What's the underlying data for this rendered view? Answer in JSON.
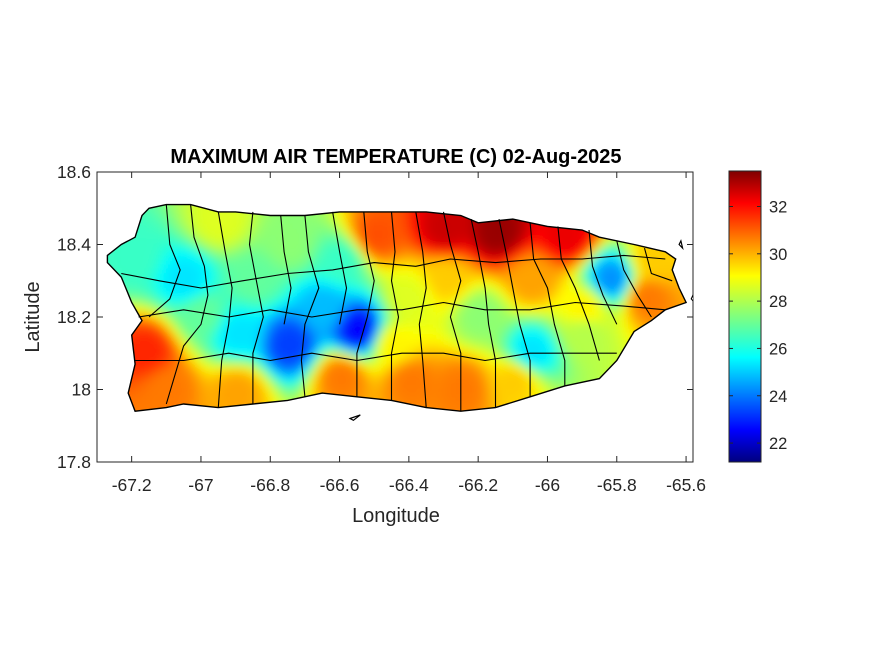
{
  "figure": {
    "title": "MAXIMUM AIR TEMPERATURE (C) 02-Aug-2025",
    "xlabel": "Longitude",
    "ylabel": "Latitude"
  },
  "map": {
    "xlim": [
      -67.3,
      -65.58
    ],
    "ylim": [
      17.8,
      18.6
    ],
    "x_ticks": [
      -67.2,
      -67,
      -66.8,
      -66.6,
      -66.4,
      -66.2,
      -66,
      -65.8,
      -65.6
    ],
    "x_tick_labels": [
      "-67.2",
      "-67",
      "-66.8",
      "-66.6",
      "-66.4",
      "-66.2",
      "-66",
      "-65.8",
      "-65.6"
    ],
    "y_ticks": [
      17.8,
      18,
      18.2,
      18.4,
      18.6
    ],
    "y_tick_labels": [
      "17.8",
      "18",
      "18.2",
      "18.4",
      "18.6"
    ],
    "boundary_color": "#000000",
    "colormap": "jet"
  },
  "colorbar": {
    "clim": [
      21.2,
      33.5
    ],
    "ticks": [
      22,
      24,
      26,
      28,
      30,
      32
    ],
    "tick_labels": [
      "22",
      "24",
      "26",
      "28",
      "30",
      "32"
    ]
  },
  "island_outline_lonlat": [
    [
      -67.27,
      18.37
    ],
    [
      -67.23,
      18.4
    ],
    [
      -67.19,
      18.42
    ],
    [
      -67.17,
      18.48
    ],
    [
      -67.15,
      18.5
    ],
    [
      -67.1,
      18.51
    ],
    [
      -67.03,
      18.51
    ],
    [
      -66.95,
      18.49
    ],
    [
      -66.9,
      18.49
    ],
    [
      -66.8,
      18.48
    ],
    [
      -66.7,
      18.48
    ],
    [
      -66.6,
      18.49
    ],
    [
      -66.45,
      18.49
    ],
    [
      -66.35,
      18.49
    ],
    [
      -66.25,
      18.48
    ],
    [
      -66.2,
      18.46
    ],
    [
      -66.1,
      18.47
    ],
    [
      -66.0,
      18.45
    ],
    [
      -65.9,
      18.44
    ],
    [
      -65.85,
      18.42
    ],
    [
      -65.75,
      18.4
    ],
    [
      -65.66,
      18.38
    ],
    [
      -65.63,
      18.36
    ],
    [
      -65.64,
      18.33
    ],
    [
      -65.62,
      18.28
    ],
    [
      -65.6,
      18.24
    ],
    [
      -65.66,
      18.22
    ],
    [
      -65.7,
      18.19
    ],
    [
      -65.75,
      18.16
    ],
    [
      -65.8,
      18.08
    ],
    [
      -65.85,
      18.03
    ],
    [
      -65.95,
      18.01
    ],
    [
      -66.05,
      17.98
    ],
    [
      -66.15,
      17.95
    ],
    [
      -66.25,
      17.94
    ],
    [
      -66.35,
      17.95
    ],
    [
      -66.45,
      17.97
    ],
    [
      -66.55,
      17.98
    ],
    [
      -66.65,
      17.99
    ],
    [
      -66.75,
      17.97
    ],
    [
      -66.85,
      17.96
    ],
    [
      -66.95,
      17.95
    ],
    [
      -67.05,
      17.96
    ],
    [
      -67.1,
      17.95
    ],
    [
      -67.19,
      17.94
    ],
    [
      -67.21,
      17.99
    ],
    [
      -67.19,
      18.07
    ],
    [
      -67.2,
      18.15
    ],
    [
      -67.17,
      18.19
    ],
    [
      -67.2,
      18.24
    ],
    [
      -67.23,
      18.31
    ],
    [
      -67.27,
      18.35
    ]
  ],
  "small_islets_lonlat": [
    [
      [
        -66.57,
        17.92
      ],
      [
        -66.54,
        17.93
      ],
      [
        -66.56,
        17.915
      ]
    ],
    [
      [
        -65.585,
        18.25
      ],
      [
        -65.575,
        18.24
      ],
      [
        -65.58,
        18.26
      ]
    ],
    [
      [
        -65.62,
        18.4
      ],
      [
        -65.61,
        18.39
      ],
      [
        -65.615,
        18.41
      ]
    ]
  ],
  "temperature_field_anchors": [
    {
      "lon": -66.15,
      "lat": 18.43,
      "temp": 33.2
    },
    {
      "lon": -66.3,
      "lat": 18.44,
      "temp": 32.6
    },
    {
      "lon": -65.95,
      "lat": 18.42,
      "temp": 32.2
    },
    {
      "lon": -66.5,
      "lat": 18.42,
      "temp": 31.0
    },
    {
      "lon": -66.95,
      "lat": 18.46,
      "temp": 28.5
    },
    {
      "lon": -67.05,
      "lat": 18.3,
      "temp": 25.5
    },
    {
      "lon": -66.85,
      "lat": 18.3,
      "temp": 27.0
    },
    {
      "lon": -66.65,
      "lat": 18.22,
      "temp": 25.0
    },
    {
      "lon": -66.55,
      "lat": 18.16,
      "temp": 22.8
    },
    {
      "lon": -66.75,
      "lat": 18.12,
      "temp": 23.5
    },
    {
      "lon": -66.9,
      "lat": 18.15,
      "temp": 25.5
    },
    {
      "lon": -66.4,
      "lat": 18.25,
      "temp": 28.5
    },
    {
      "lon": -66.2,
      "lat": 18.2,
      "temp": 27.5
    },
    {
      "lon": -66.05,
      "lat": 18.1,
      "temp": 25.5
    },
    {
      "lon": -65.82,
      "lat": 18.3,
      "temp": 24.5
    },
    {
      "lon": -65.72,
      "lat": 18.25,
      "temp": 30.5
    },
    {
      "lon": -65.9,
      "lat": 18.15,
      "temp": 28.0
    },
    {
      "lon": -67.16,
      "lat": 18.1,
      "temp": 31.5
    },
    {
      "lon": -67.1,
      "lat": 18.0,
      "temp": 30.5
    },
    {
      "lon": -66.9,
      "lat": 17.99,
      "temp": 30.0
    },
    {
      "lon": -66.6,
      "lat": 18.03,
      "temp": 30.5
    },
    {
      "lon": -66.4,
      "lat": 18.02,
      "temp": 30.5
    },
    {
      "lon": -66.25,
      "lat": 18.0,
      "temp": 30.5
    },
    {
      "lon": -66.1,
      "lat": 18.02,
      "temp": 29.5
    },
    {
      "lon": -66.6,
      "lat": 18.35,
      "temp": 26.5
    },
    {
      "lon": -66.75,
      "lat": 18.4,
      "temp": 27.5
    },
    {
      "lon": -67.2,
      "lat": 18.36,
      "temp": 26.5
    },
    {
      "lon": -65.7,
      "lat": 18.35,
      "temp": 29.5
    },
    {
      "lon": -66.3,
      "lat": 18.3,
      "temp": 29.5
    },
    {
      "lon": -66.05,
      "lat": 18.3,
      "temp": 30.0
    },
    {
      "lon": -65.9,
      "lat": 18.22,
      "temp": 29.0
    },
    {
      "lon": -66.45,
      "lat": 18.12,
      "temp": 29.0
    },
    {
      "lon": -67.0,
      "lat": 18.2,
      "temp": 27.0
    }
  ],
  "municipality_boundaries_lonlat": [
    [
      [
        -67.1,
        18.51
      ],
      [
        -67.09,
        18.4
      ],
      [
        -67.06,
        18.33
      ],
      [
        -67.09,
        18.25
      ],
      [
        -67.15,
        18.2
      ]
    ],
    [
      [
        -67.03,
        18.51
      ],
      [
        -67.02,
        18.42
      ],
      [
        -66.99,
        18.34
      ],
      [
        -66.98,
        18.26
      ],
      [
        -67.0,
        18.18
      ],
      [
        -67.05,
        18.12
      ],
      [
        -67.1,
        17.96
      ]
    ],
    [
      [
        -66.95,
        18.49
      ],
      [
        -66.93,
        18.38
      ],
      [
        -66.91,
        18.28
      ],
      [
        -66.92,
        18.18
      ],
      [
        -66.94,
        18.08
      ],
      [
        -66.95,
        17.95
      ]
    ],
    [
      [
        -66.85,
        18.49
      ],
      [
        -66.86,
        18.4
      ],
      [
        -66.84,
        18.3
      ],
      [
        -66.82,
        18.2
      ],
      [
        -66.85,
        18.1
      ],
      [
        -66.85,
        17.96
      ]
    ],
    [
      [
        -66.77,
        18.48
      ],
      [
        -66.76,
        18.38
      ],
      [
        -66.74,
        18.28
      ],
      [
        -66.76,
        18.18
      ]
    ],
    [
      [
        -66.7,
        18.48
      ],
      [
        -66.69,
        18.38
      ],
      [
        -66.66,
        18.28
      ],
      [
        -66.7,
        18.18
      ],
      [
        -66.71,
        18.08
      ],
      [
        -66.7,
        17.98
      ]
    ],
    [
      [
        -66.62,
        18.49
      ],
      [
        -66.6,
        18.38
      ],
      [
        -66.58,
        18.28
      ],
      [
        -66.6,
        18.18
      ]
    ],
    [
      [
        -66.53,
        18.49
      ],
      [
        -66.52,
        18.38
      ],
      [
        -66.5,
        18.3
      ],
      [
        -66.52,
        18.2
      ],
      [
        -66.55,
        18.1
      ],
      [
        -66.55,
        17.98
      ]
    ],
    [
      [
        -66.45,
        18.49
      ],
      [
        -66.44,
        18.38
      ],
      [
        -66.45,
        18.3
      ],
      [
        -66.43,
        18.2
      ],
      [
        -66.45,
        18.1
      ],
      [
        -66.45,
        17.97
      ]
    ],
    [
      [
        -66.38,
        18.49
      ],
      [
        -66.36,
        18.38
      ],
      [
        -66.35,
        18.28
      ],
      [
        -66.37,
        18.18
      ],
      [
        -66.36,
        18.08
      ],
      [
        -66.35,
        17.95
      ]
    ],
    [
      [
        -66.3,
        18.49
      ],
      [
        -66.28,
        18.4
      ],
      [
        -66.25,
        18.3
      ],
      [
        -66.28,
        18.2
      ],
      [
        -66.25,
        18.1
      ],
      [
        -66.25,
        17.94
      ]
    ],
    [
      [
        -66.22,
        18.47
      ],
      [
        -66.2,
        18.38
      ],
      [
        -66.18,
        18.28
      ],
      [
        -66.17,
        18.18
      ],
      [
        -66.15,
        18.08
      ],
      [
        -66.15,
        17.95
      ]
    ],
    [
      [
        -66.14,
        18.47
      ],
      [
        -66.12,
        18.38
      ],
      [
        -66.1,
        18.28
      ],
      [
        -66.08,
        18.18
      ],
      [
        -66.05,
        18.08
      ],
      [
        -66.05,
        17.98
      ]
    ],
    [
      [
        -66.05,
        18.46
      ],
      [
        -66.04,
        18.36
      ],
      [
        -66.0,
        18.28
      ],
      [
        -65.98,
        18.18
      ],
      [
        -65.95,
        18.08
      ],
      [
        -65.95,
        18.01
      ]
    ],
    [
      [
        -65.97,
        18.45
      ],
      [
        -65.96,
        18.36
      ],
      [
        -65.92,
        18.28
      ],
      [
        -65.88,
        18.18
      ],
      [
        -65.85,
        18.08
      ]
    ],
    [
      [
        -65.88,
        18.44
      ],
      [
        -65.87,
        18.34
      ],
      [
        -65.84,
        18.26
      ],
      [
        -65.8,
        18.18
      ]
    ],
    [
      [
        -65.8,
        18.41
      ],
      [
        -65.78,
        18.33
      ],
      [
        -65.74,
        18.26
      ],
      [
        -65.7,
        18.2
      ]
    ],
    [
      [
        -65.72,
        18.39
      ],
      [
        -65.7,
        18.32
      ],
      [
        -65.64,
        18.3
      ]
    ],
    [
      [
        -67.23,
        18.32
      ],
      [
        -67.12,
        18.3
      ],
      [
        -67.0,
        18.28
      ],
      [
        -66.88,
        18.3
      ],
      [
        -66.75,
        18.32
      ],
      [
        -66.62,
        18.33
      ],
      [
        -66.5,
        18.35
      ],
      [
        -66.38,
        18.34
      ],
      [
        -66.28,
        18.36
      ],
      [
        -66.15,
        18.35
      ],
      [
        -66.02,
        18.36
      ],
      [
        -65.9,
        18.36
      ],
      [
        -65.78,
        18.37
      ],
      [
        -65.66,
        18.36
      ]
    ],
    [
      [
        -67.18,
        18.2
      ],
      [
        -67.05,
        18.22
      ],
      [
        -66.92,
        18.2
      ],
      [
        -66.8,
        18.22
      ],
      [
        -66.68,
        18.2
      ],
      [
        -66.55,
        18.22
      ],
      [
        -66.42,
        18.22
      ],
      [
        -66.3,
        18.24
      ],
      [
        -66.18,
        18.22
      ],
      [
        -66.05,
        18.22
      ],
      [
        -65.92,
        18.24
      ],
      [
        -65.78,
        18.23
      ],
      [
        -65.66,
        18.22
      ]
    ],
    [
      [
        -67.19,
        18.08
      ],
      [
        -67.05,
        18.08
      ],
      [
        -66.92,
        18.1
      ],
      [
        -66.8,
        18.08
      ],
      [
        -66.68,
        18.1
      ],
      [
        -66.55,
        18.08
      ],
      [
        -66.42,
        18.1
      ],
      [
        -66.3,
        18.1
      ],
      [
        -66.18,
        18.08
      ],
      [
        -66.05,
        18.1
      ],
      [
        -65.92,
        18.1
      ],
      [
        -65.8,
        18.1
      ]
    ]
  ]
}
